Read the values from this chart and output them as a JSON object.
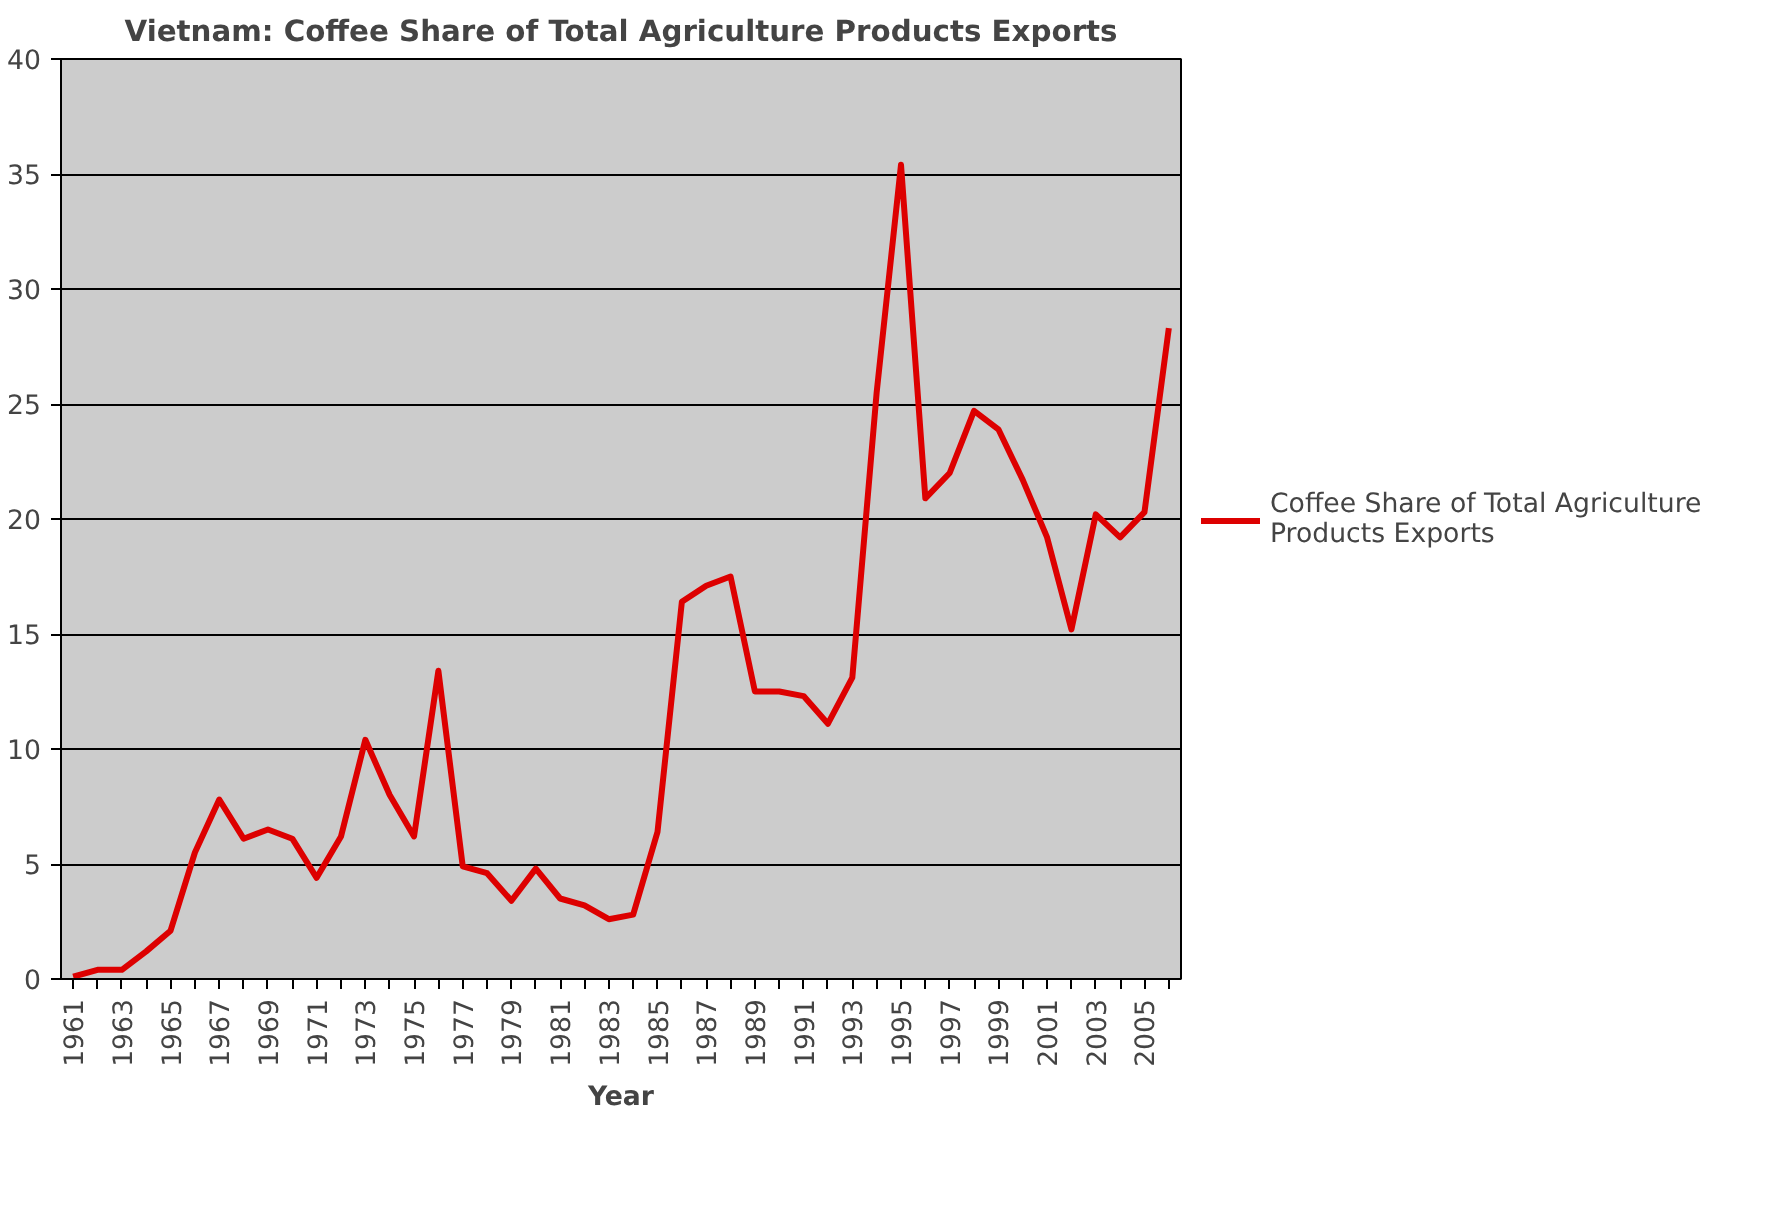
{
  "chart_data": {
    "type": "line",
    "title": "Vietnam: Coffee Share of Total Agriculture Products Exports",
    "xlabel": "Year",
    "categories": [
      "1961",
      null,
      "1963",
      null,
      "1965",
      null,
      "1967",
      null,
      "1969",
      null,
      "1971",
      null,
      "1973",
      null,
      "1975",
      null,
      "1977",
      null,
      "1979",
      null,
      "1981",
      null,
      "1983",
      null,
      "1985",
      null,
      "1987",
      null,
      "1989",
      null,
      "1991",
      null,
      "1993",
      null,
      "1995",
      null,
      "1997",
      null,
      "1999",
      null,
      "2001",
      null,
      "2003",
      null,
      "2005",
      null
    ],
    "series": [
      {
        "name": "Coffee Share of Total Agriculture Products Exports",
        "color": "#dd0000",
        "values": [
          0.1,
          0.4,
          0.4,
          1.2,
          2.1,
          5.5,
          7.8,
          6.1,
          6.5,
          6.1,
          4.4,
          6.2,
          10.4,
          8.0,
          6.2,
          13.4,
          4.9,
          4.6,
          3.4,
          4.8,
          3.5,
          3.2,
          2.6,
          2.8,
          6.4,
          16.4,
          17.1,
          17.5,
          12.5,
          12.5,
          12.3,
          11.1,
          13.1,
          25.5,
          35.4,
          20.9,
          22.0,
          24.7,
          23.9,
          21.7,
          19.2,
          15.2,
          20.2,
          19.2,
          20.3,
          28.3
        ]
      }
    ],
    "ylim": [
      0,
      40
    ],
    "yticks": [
      0,
      5,
      10,
      15,
      20,
      25,
      30,
      35,
      40
    ],
    "grid": "y",
    "legend": "right",
    "marker": "none",
    "line_style": "solid"
  }
}
